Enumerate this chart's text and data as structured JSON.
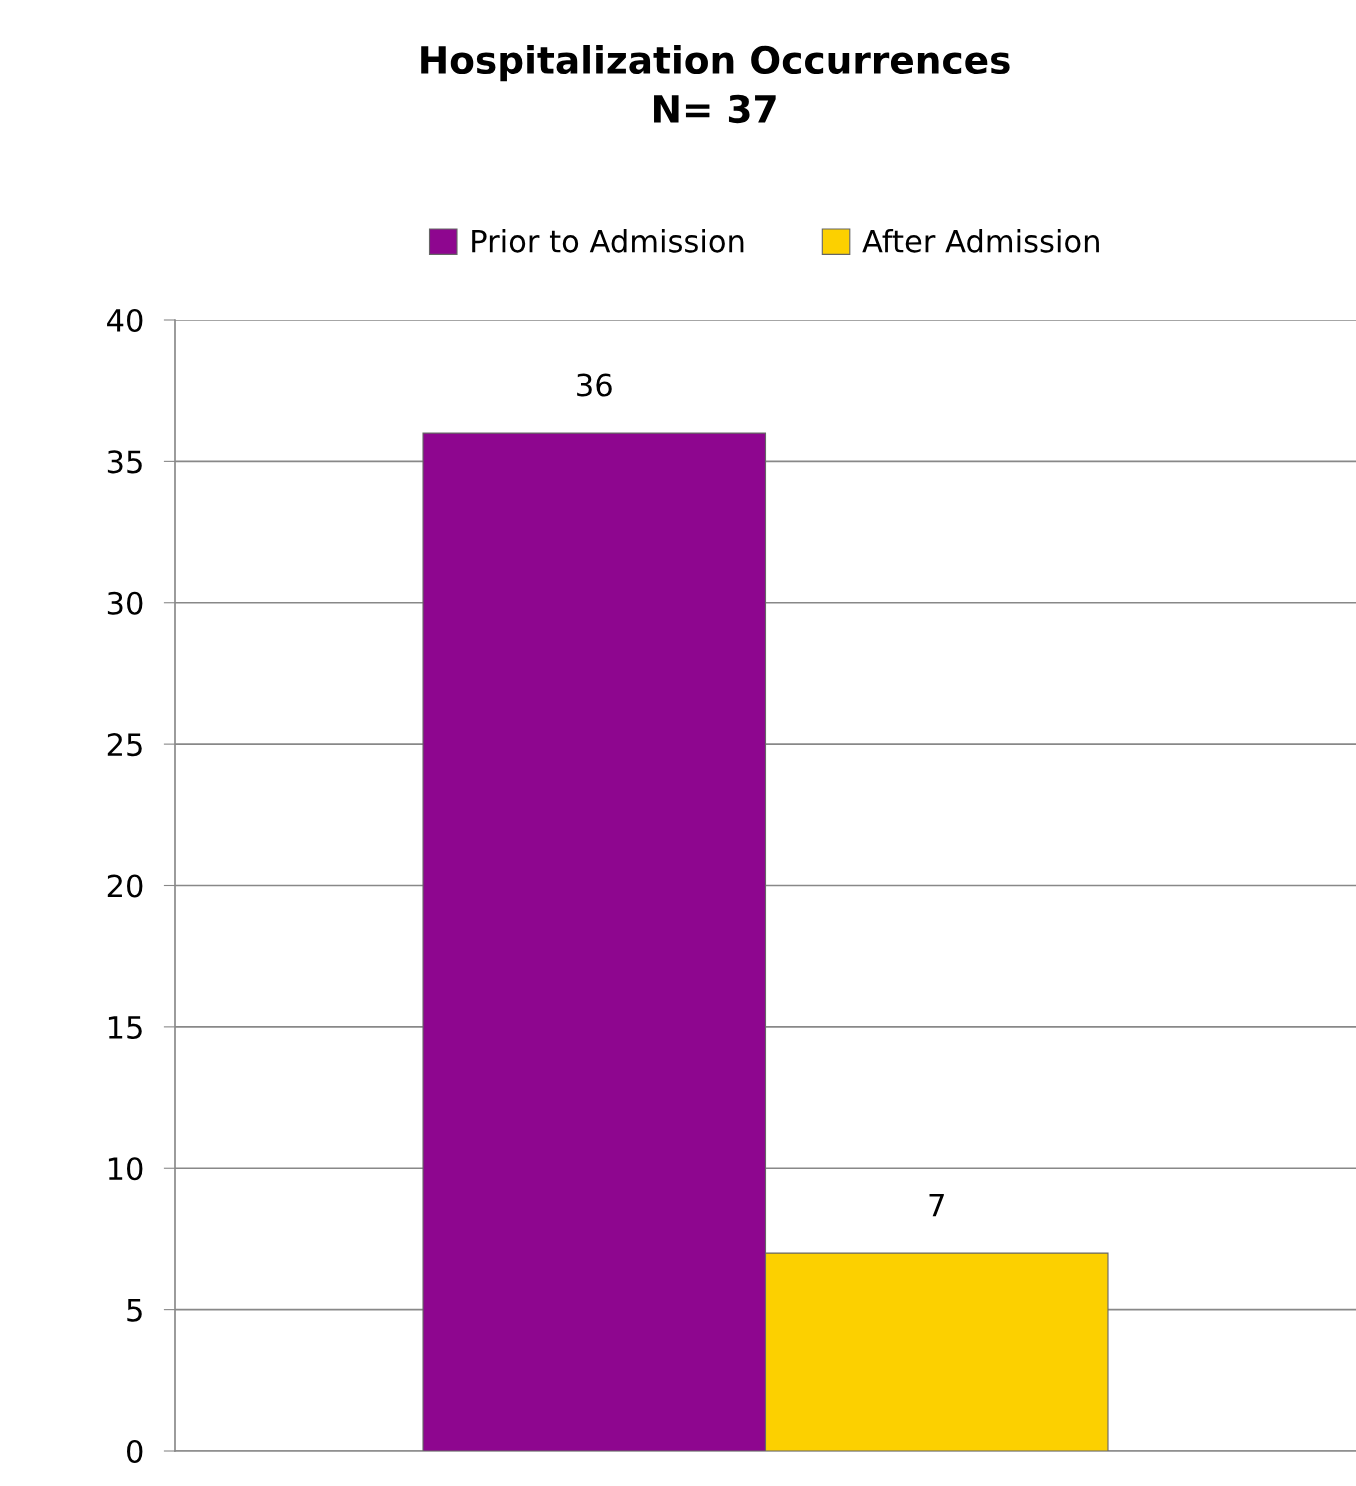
{
  "chart_data": {
    "type": "bar",
    "title": "Hospitalization Occurrences\nN= 37",
    "categories": [
      null
    ],
    "series": [
      {
        "name": "Prior to Admission",
        "color": "#8e068f",
        "values": [
          36
        ]
      },
      {
        "name": "After Admission",
        "color": "#fcd000",
        "values": [
          7
        ]
      }
    ],
    "ylim": [
      0,
      40
    ],
    "yticks": [
      0,
      5,
      10,
      15,
      20,
      25,
      30,
      35,
      40
    ],
    "grid": "y",
    "legend": "top",
    "data_labels": true
  }
}
